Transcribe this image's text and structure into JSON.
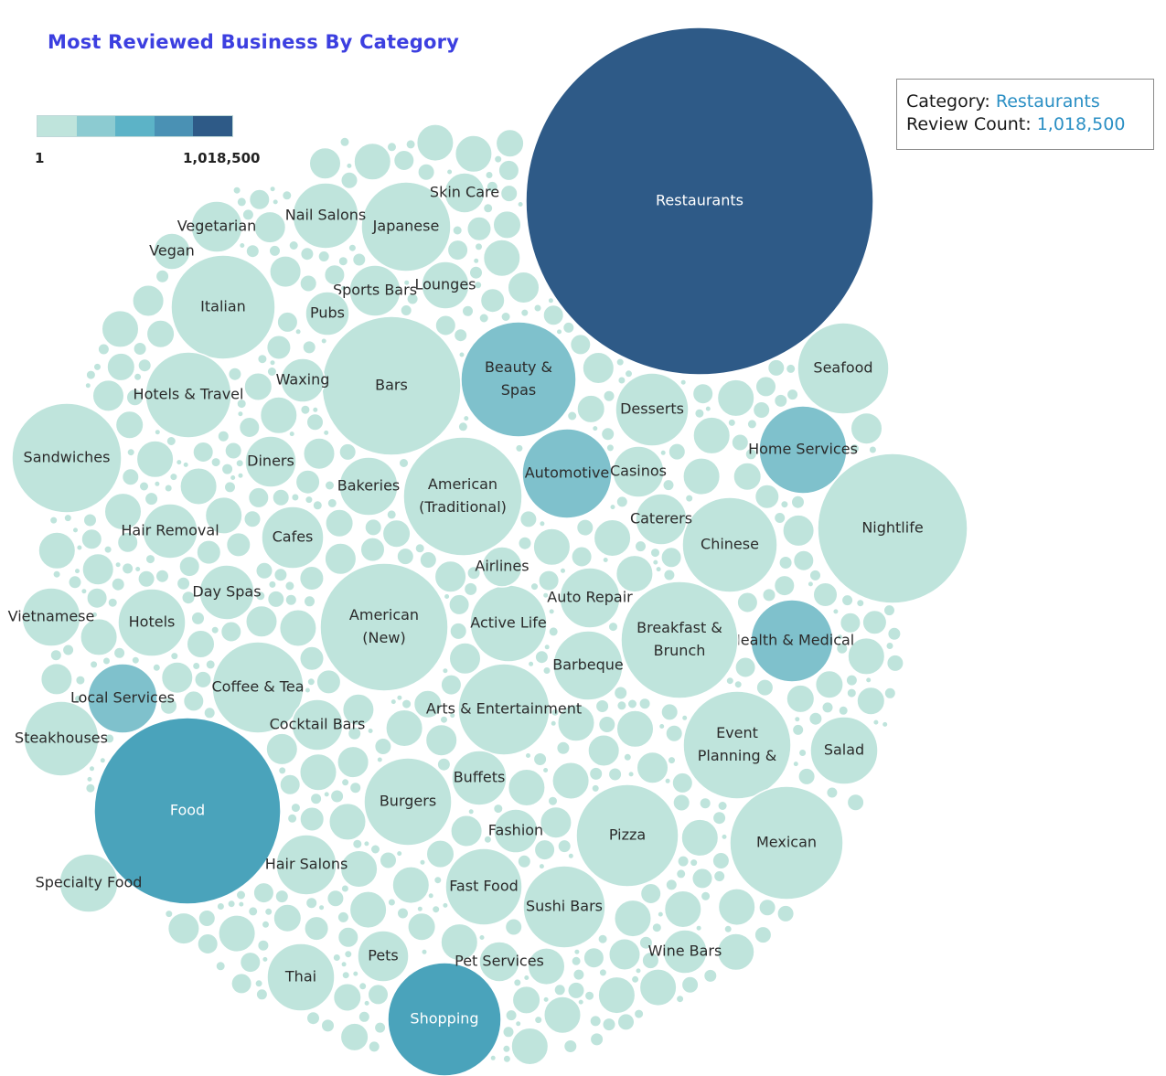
{
  "chart_data": {
    "type": "bubble",
    "title": "Most Reviewed Business By Category",
    "color_legend": {
      "min_label": "1",
      "max_label": "1,018,500",
      "colors": [
        "#bfe4dc",
        "#8ccbd1",
        "#5cb3c7",
        "#4a91b4",
        "#2e5a87"
      ]
    },
    "tooltip": {
      "category_label": "Category:",
      "category_value": "Restaurants",
      "count_label": "Review Count:",
      "count_value": "1,018,500"
    },
    "categories": [
      {
        "name": "Restaurants",
        "review_count": 1018500,
        "color": "#2e5a87"
      },
      {
        "name": "Food",
        "review_count": 280000,
        "color": "#4aa3bb"
      },
      {
        "name": "Shopping",
        "review_count": 105000,
        "color": "#4aa3bb"
      },
      {
        "name": "Beauty & Spas",
        "review_count": 110000,
        "color": "#7fc1cc"
      },
      {
        "name": "Automotive",
        "review_count": 65000,
        "color": "#7fc1cc"
      },
      {
        "name": "Home Services",
        "review_count": 55000,
        "color": "#7fc1cc"
      },
      {
        "name": "Health & Medical",
        "review_count": 60000,
        "color": "#7fc1cc"
      },
      {
        "name": "Local Services",
        "review_count": 40000,
        "color": "#7fc1cc"
      },
      {
        "name": "Nightlife",
        "review_count": 180000,
        "color": "#bfe4dc"
      },
      {
        "name": "Bars",
        "review_count": 155000,
        "color": "#bfe4dc"
      },
      {
        "name": "American (Traditional)",
        "review_count": 115000,
        "color": "#bfe4dc"
      },
      {
        "name": "American (New)",
        "review_count": 132000,
        "color": "#bfe4dc"
      },
      {
        "name": "Breakfast & Brunch",
        "review_count": 110000,
        "color": "#bfe4dc"
      },
      {
        "name": "Event Planning &",
        "review_count": 95000,
        "color": "#bfe4dc"
      },
      {
        "name": "Mexican",
        "review_count": 100000,
        "color": "#bfe4dc"
      },
      {
        "name": "Italian",
        "review_count": 85000,
        "color": "#bfe4dc"
      },
      {
        "name": "Sandwiches",
        "review_count": 95000,
        "color": "#bfe4dc"
      },
      {
        "name": "Pizza",
        "review_count": 85000,
        "color": "#bfe4dc"
      },
      {
        "name": "Chinese",
        "review_count": 75000,
        "color": "#bfe4dc"
      },
      {
        "name": "Arts & Entertainment",
        "review_count": 70000,
        "color": "#bfe4dc"
      },
      {
        "name": "Coffee & Tea",
        "review_count": 68000,
        "color": "#bfe4dc"
      },
      {
        "name": "Japanese",
        "review_count": 65000,
        "color": "#bfe4dc"
      },
      {
        "name": "Hotels & Travel",
        "review_count": 60000,
        "color": "#bfe4dc"
      },
      {
        "name": "Fast Food",
        "review_count": 48000,
        "color": "#bfe4dc"
      },
      {
        "name": "Burgers",
        "review_count": 63000,
        "color": "#bfe4dc"
      },
      {
        "name": "Sushi Bars",
        "review_count": 55000,
        "color": "#bfe4dc"
      },
      {
        "name": "Seafood",
        "review_count": 68000,
        "color": "#bfe4dc"
      },
      {
        "name": "Active Life",
        "review_count": 47000,
        "color": "#bfe4dc"
      },
      {
        "name": "Desserts",
        "review_count": 42000,
        "color": "#bfe4dc"
      },
      {
        "name": "Thai",
        "review_count": 36000,
        "color": "#bfe4dc"
      },
      {
        "name": "Hotels",
        "review_count": 34000,
        "color": "#bfe4dc"
      },
      {
        "name": "Salad",
        "review_count": 36000,
        "color": "#bfe4dc"
      },
      {
        "name": "Steakhouses",
        "review_count": 38000,
        "color": "#bfe4dc"
      },
      {
        "name": "Specialty Food",
        "review_count": 28000,
        "color": "#bfe4dc"
      },
      {
        "name": "Vietnamese",
        "review_count": 26000,
        "color": "#bfe4dc"
      },
      {
        "name": "Barbeque",
        "review_count": 30000,
        "color": "#bfe4dc"
      },
      {
        "name": "Cafes",
        "review_count": 30000,
        "color": "#bfe4dc"
      },
      {
        "name": "Bakeries",
        "review_count": 26000,
        "color": "#bfe4dc"
      },
      {
        "name": "Auto Repair",
        "review_count": 28000,
        "color": "#bfe4dc"
      },
      {
        "name": "Casinos",
        "review_count": 22000,
        "color": "#bfe4dc"
      },
      {
        "name": "Caterers",
        "review_count": 22000,
        "color": "#bfe4dc"
      },
      {
        "name": "Buffets",
        "review_count": 22000,
        "color": "#bfe4dc"
      },
      {
        "name": "Nail Salons",
        "review_count": 24000,
        "color": "#bfe4dc"
      },
      {
        "name": "Pets",
        "review_count": 20000,
        "color": "#bfe4dc"
      },
      {
        "name": "Wine Bars",
        "review_count": 16000,
        "color": "#bfe4dc"
      },
      {
        "name": "Fashion",
        "review_count": 16000,
        "color": "#bfe4dc"
      },
      {
        "name": "Hair Salons",
        "review_count": 22000,
        "color": "#bfe4dc"
      },
      {
        "name": "Pet Services",
        "review_count": 14000,
        "color": "#bfe4dc"
      },
      {
        "name": "Hair Removal",
        "review_count": 18000,
        "color": "#bfe4dc"
      },
      {
        "name": "Day Spas",
        "review_count": 18000,
        "color": "#bfe4dc"
      },
      {
        "name": "Sports Bars",
        "review_count": 20000,
        "color": "#bfe4dc"
      },
      {
        "name": "Lounges",
        "review_count": 16000,
        "color": "#bfe4dc"
      },
      {
        "name": "Diners",
        "review_count": 16000,
        "color": "#bfe4dc"
      },
      {
        "name": "Cocktail Bars",
        "review_count": 16000,
        "color": "#bfe4dc"
      },
      {
        "name": "Vegetarian",
        "review_count": 18000,
        "color": "#bfe4dc"
      },
      {
        "name": "Airlines",
        "review_count": 14000,
        "color": "#bfe4dc"
      },
      {
        "name": "Skin Care",
        "review_count": 14000,
        "color": "#bfe4dc"
      },
      {
        "name": "Waxing",
        "review_count": 14000,
        "color": "#bfe4dc"
      },
      {
        "name": "Pubs",
        "review_count": 14000,
        "color": "#bfe4dc"
      },
      {
        "name": "Vegan",
        "review_count": 12000,
        "color": "#bfe4dc"
      }
    ]
  }
}
